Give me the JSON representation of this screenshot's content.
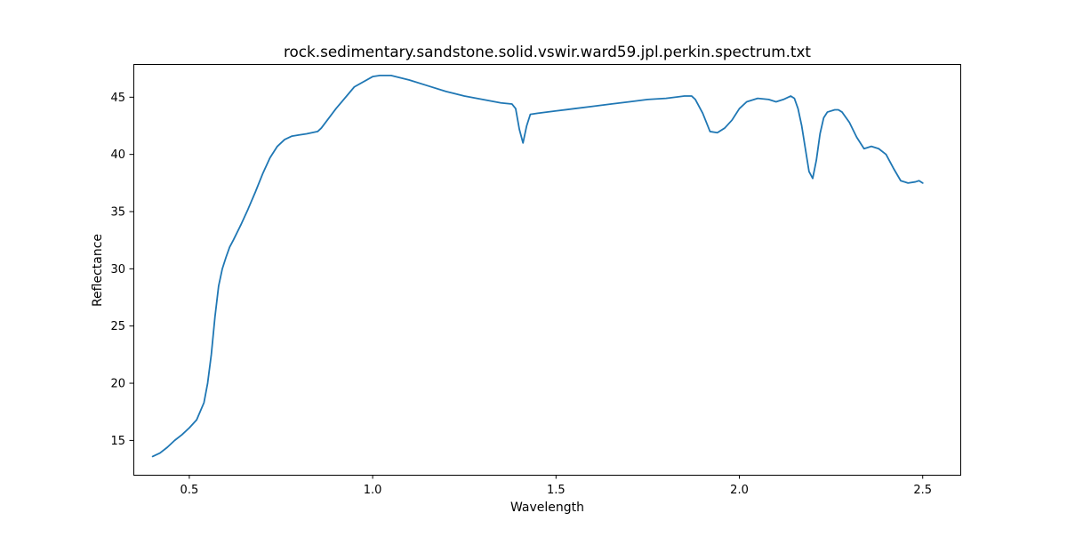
{
  "chart_data": {
    "type": "line",
    "title": "rock.sedimentary.sandstone.solid.vswir.ward59.jpl.perkin.spectrum.txt",
    "xlabel": "Wavelength",
    "ylabel": "Reflectance",
    "xlim": [
      0.3475,
      2.6025
    ],
    "ylim": [
      12.0,
      47.9
    ],
    "xticks": [
      0.5,
      1.0,
      1.5,
      2.0,
      2.5
    ],
    "xtick_labels": [
      "0.5",
      "1.0",
      "1.5",
      "2.0",
      "2.5"
    ],
    "yticks": [
      15,
      20,
      25,
      30,
      35,
      40,
      45
    ],
    "ytick_labels": [
      "15",
      "20",
      "25",
      "30",
      "35",
      "40",
      "45"
    ],
    "grid": false,
    "series": [
      {
        "color": "#1f77b4",
        "x": [
          0.4,
          0.42,
          0.44,
          0.46,
          0.48,
          0.5,
          0.52,
          0.54,
          0.55,
          0.56,
          0.57,
          0.58,
          0.59,
          0.6,
          0.61,
          0.62,
          0.64,
          0.66,
          0.68,
          0.7,
          0.72,
          0.74,
          0.76,
          0.78,
          0.8,
          0.82,
          0.85,
          0.86,
          0.9,
          0.95,
          1.0,
          1.02,
          1.05,
          1.1,
          1.15,
          1.2,
          1.25,
          1.3,
          1.35,
          1.38,
          1.39,
          1.4,
          1.41,
          1.42,
          1.43,
          1.45,
          1.5,
          1.55,
          1.6,
          1.65,
          1.7,
          1.75,
          1.8,
          1.85,
          1.87,
          1.88,
          1.9,
          1.92,
          1.94,
          1.96,
          1.98,
          2.0,
          2.02,
          2.05,
          2.08,
          2.1,
          2.12,
          2.14,
          2.15,
          2.16,
          2.17,
          2.18,
          2.19,
          2.2,
          2.21,
          2.22,
          2.23,
          2.24,
          2.26,
          2.27,
          2.28,
          2.3,
          2.32,
          2.34,
          2.36,
          2.38,
          2.4,
          2.42,
          2.44,
          2.46,
          2.48,
          2.49,
          2.5
        ],
        "y": [
          13.6,
          13.9,
          14.4,
          15.0,
          15.5,
          16.1,
          16.8,
          18.3,
          20.0,
          22.5,
          25.8,
          28.5,
          30.0,
          31.0,
          31.9,
          32.5,
          33.8,
          35.2,
          36.7,
          38.3,
          39.7,
          40.7,
          41.3,
          41.6,
          41.7,
          41.8,
          42.0,
          42.3,
          44.0,
          45.9,
          46.8,
          46.9,
          46.9,
          46.5,
          46.0,
          45.5,
          45.1,
          44.8,
          44.5,
          44.4,
          44.0,
          42.2,
          41.0,
          42.5,
          43.5,
          43.6,
          43.8,
          44.0,
          44.2,
          44.4,
          44.6,
          44.8,
          44.9,
          45.1,
          45.1,
          44.8,
          43.6,
          42.0,
          41.9,
          42.3,
          43.0,
          44.0,
          44.6,
          44.9,
          44.8,
          44.6,
          44.8,
          45.1,
          44.9,
          44.0,
          42.5,
          40.5,
          38.5,
          37.9,
          39.5,
          41.8,
          43.2,
          43.7,
          43.9,
          43.9,
          43.7,
          42.8,
          41.5,
          40.5,
          40.7,
          40.5,
          40.0,
          38.8,
          37.7,
          37.5,
          37.6,
          37.7,
          37.5
        ]
      }
    ]
  }
}
